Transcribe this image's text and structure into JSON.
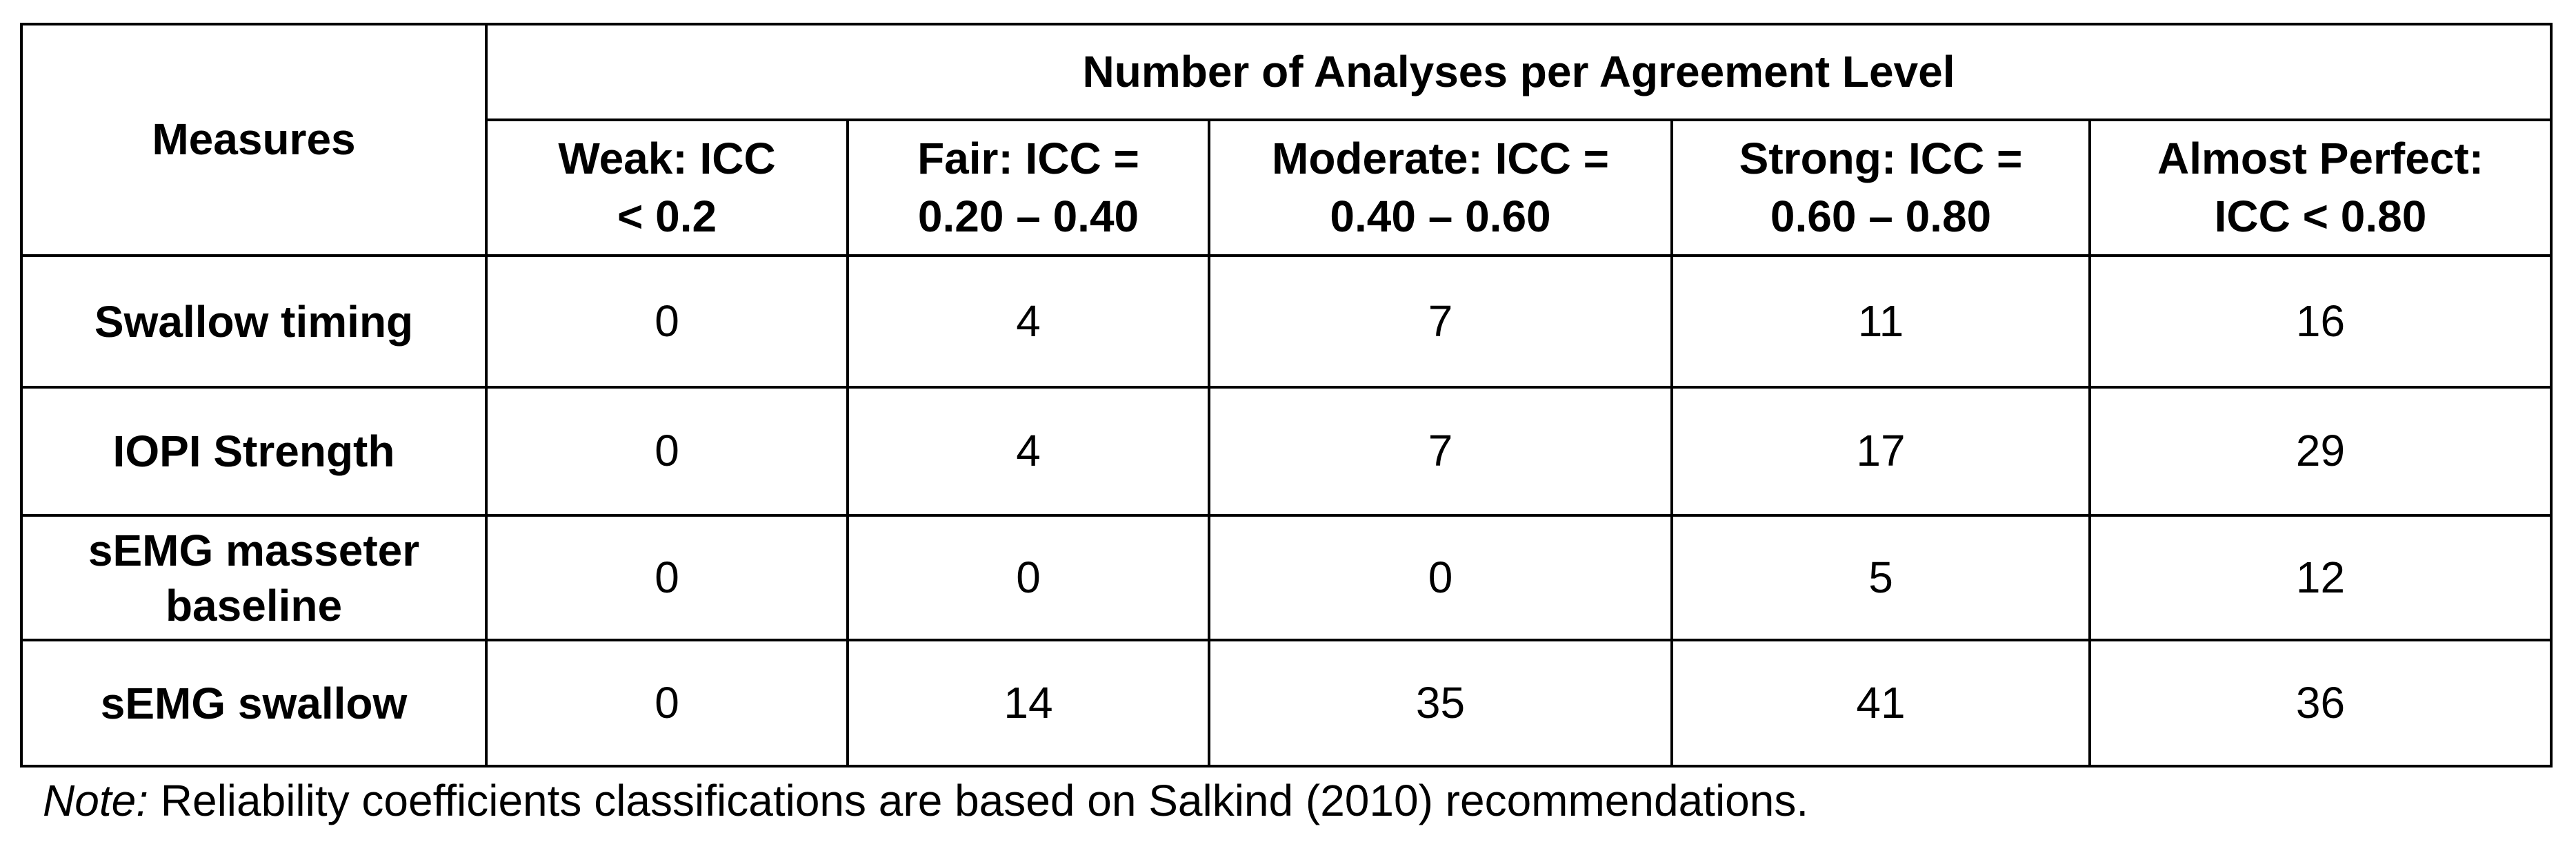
{
  "table": {
    "corner": "Measures",
    "group": "Number of Analyses per Agreement Level",
    "columns": [
      [
        "Weak: ICC",
        "< 0.2"
      ],
      [
        "Fair: ICC =",
        "0.20 – 0.40"
      ],
      [
        "Moderate: ICC =",
        "0.40 – 0.60"
      ],
      [
        "Strong: ICC =",
        "0.60 – 0.80"
      ],
      [
        "Almost Perfect:",
        "ICC < 0.80"
      ]
    ],
    "rows": [
      {
        "name": "Swallow timing",
        "values": [
          0,
          4,
          7,
          11,
          16
        ]
      },
      {
        "name": "IOPI Strength",
        "values": [
          0,
          4,
          7,
          17,
          29
        ]
      },
      {
        "name": "sEMG masseter baseline",
        "values": [
          0,
          0,
          0,
          5,
          12
        ]
      },
      {
        "name": "sEMG swallow",
        "values": [
          0,
          14,
          35,
          41,
          36
        ]
      }
    ]
  },
  "note": {
    "label": "Note:",
    "text": " Reliability coefficients classifications are based on Salkind (2010) recommendations."
  }
}
